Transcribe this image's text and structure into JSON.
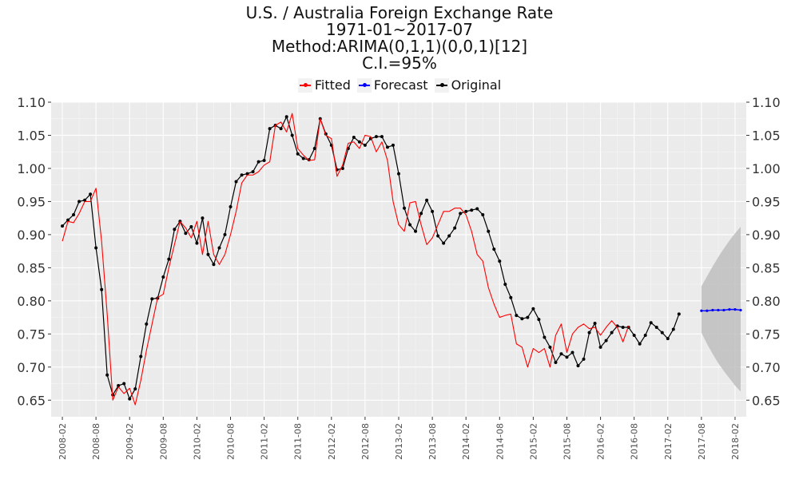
{
  "chart_data": {
    "type": "line",
    "title_lines": [
      "U.S. / Australia Foreign Exchange Rate",
      "1971-01~2017-07",
      "Method:ARIMA(0,1,1)(0,0,1)[12]",
      "C.I.=95%"
    ],
    "legend_position": "top",
    "grid": true,
    "ylim": [
      0.625,
      1.1
    ],
    "xlim": [
      "2007-12",
      "2018-04"
    ],
    "y_ticks": [
      "0.65",
      "0.70",
      "0.75",
      "0.80",
      "0.85",
      "0.90",
      "0.95",
      "1.00",
      "1.05",
      "1.10"
    ],
    "x_ticks": [
      "2008-02",
      "2008-08",
      "2009-02",
      "2009-08",
      "2010-02",
      "2010-08",
      "2011-02",
      "2011-08",
      "2012-02",
      "2012-08",
      "2013-02",
      "2013-08",
      "2014-02",
      "2014-08",
      "2015-02",
      "2015-08",
      "2016-02",
      "2016-08",
      "2017-02",
      "2017-08",
      "2018-02"
    ],
    "original_start": "2008-02",
    "series": [
      {
        "name": "Fitted",
        "color": "#ff0000",
        "start": "2008-02",
        "values": [
          0.89,
          0.92,
          0.918,
          0.932,
          0.95,
          0.95,
          0.97,
          0.89,
          0.78,
          0.65,
          0.67,
          0.66,
          0.668,
          0.643,
          0.68,
          0.725,
          0.765,
          0.805,
          0.81,
          0.85,
          0.885,
          0.92,
          0.91,
          0.895,
          0.92,
          0.87,
          0.92,
          0.87,
          0.855,
          0.87,
          0.9,
          0.935,
          0.978,
          0.99,
          0.99,
          0.995,
          1.005,
          1.01,
          1.065,
          1.07,
          1.055,
          1.083,
          1.03,
          1.02,
          1.012,
          1.013,
          1.075,
          1.05,
          1.045,
          0.988,
          1.005,
          1.038,
          1.04,
          1.03,
          1.05,
          1.048,
          1.025,
          1.04,
          1.012,
          0.95,
          0.915,
          0.905,
          0.948,
          0.95,
          0.915,
          0.885,
          0.895,
          0.915,
          0.935,
          0.935,
          0.94,
          0.94,
          0.93,
          0.905,
          0.87,
          0.86,
          0.82,
          0.795,
          0.775,
          0.778,
          0.78,
          0.735,
          0.73,
          0.7,
          0.728,
          0.722,
          0.728,
          0.7,
          0.748,
          0.765,
          0.722,
          0.75,
          0.76,
          0.765,
          0.758,
          0.76,
          0.748,
          0.76,
          0.77,
          0.76,
          0.738,
          0.762
        ]
      },
      {
        "name": "Forecast",
        "color": "#0000ff",
        "start": "2017-08",
        "values": [
          0.785,
          0.785,
          0.786,
          0.786,
          0.786,
          0.787,
          0.787,
          0.786
        ]
      },
      {
        "name": "Original",
        "color": "#000000",
        "start": "2008-02",
        "values": [
          0.913,
          0.922,
          0.93,
          0.95,
          0.952,
          0.961,
          0.88,
          0.817,
          0.688,
          0.658,
          0.672,
          0.675,
          0.652,
          0.667,
          0.716,
          0.765,
          0.803,
          0.804,
          0.836,
          0.863,
          0.908,
          0.92,
          0.902,
          0.912,
          0.887,
          0.925,
          0.87,
          0.855,
          0.88,
          0.9,
          0.942,
          0.98,
          0.99,
          0.992,
          0.995,
          1.01,
          1.012,
          1.06,
          1.065,
          1.06,
          1.078,
          1.05,
          1.022,
          1.015,
          1.013,
          1.03,
          1.075,
          1.052,
          1.035,
          0.998,
          1.0,
          1.03,
          1.047,
          1.04,
          1.035,
          1.045,
          1.048,
          1.048,
          1.032,
          1.035,
          0.992,
          0.94,
          0.915,
          0.905,
          0.932,
          0.952,
          0.935,
          0.898,
          0.887,
          0.898,
          0.91,
          0.932,
          0.935,
          0.937,
          0.939,
          0.93,
          0.905,
          0.878,
          0.86,
          0.825,
          0.805,
          0.778,
          0.773,
          0.775,
          0.788,
          0.772,
          0.745,
          0.73,
          0.707,
          0.72,
          0.715,
          0.722,
          0.702,
          0.712,
          0.752,
          0.766,
          0.73,
          0.74,
          0.752,
          0.762,
          0.76,
          0.76,
          0.748,
          0.735,
          0.748,
          0.767,
          0.76,
          0.752,
          0.743,
          0.757,
          0.78
        ]
      }
    ],
    "confidence_band": {
      "start": "2017-08",
      "color": "#bbbbbb",
      "lower": [
        0.752,
        0.735,
        0.72,
        0.706,
        0.694,
        0.683,
        0.672,
        0.663
      ],
      "upper": [
        0.822,
        0.837,
        0.852,
        0.866,
        0.879,
        0.891,
        0.902,
        0.912
      ]
    }
  }
}
